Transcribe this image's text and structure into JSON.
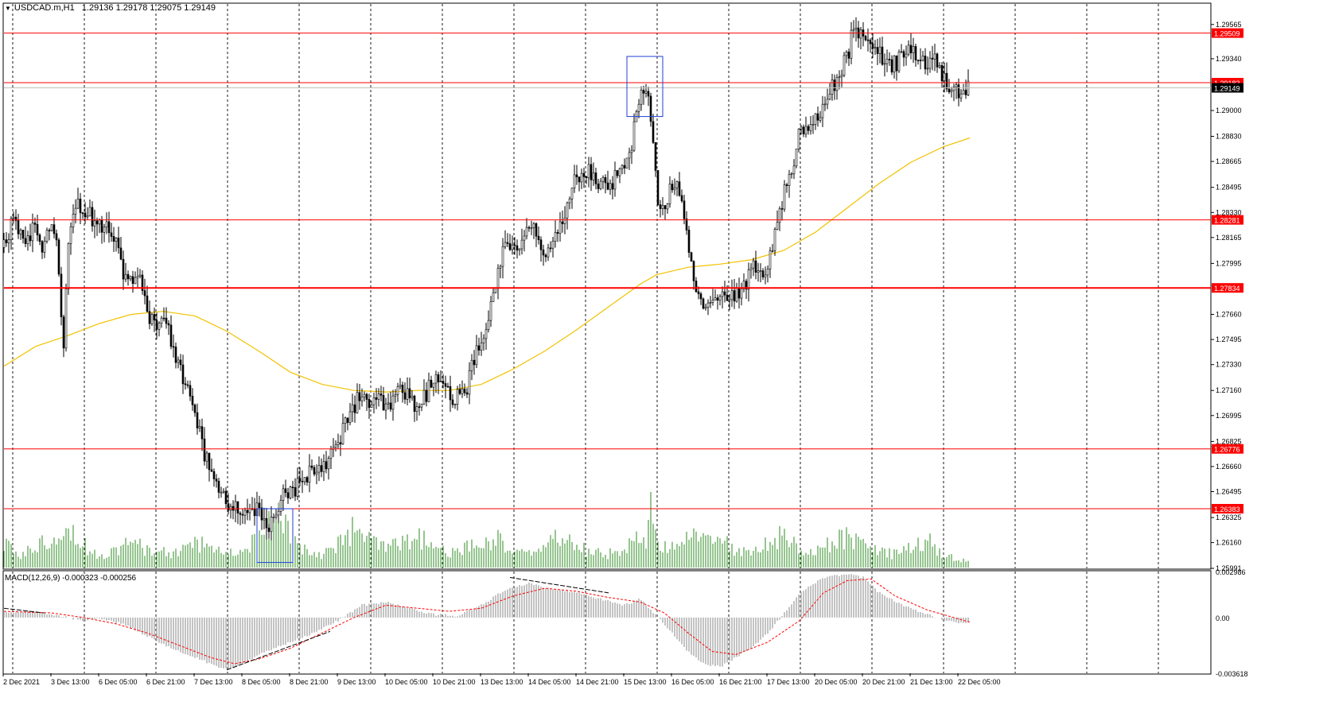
{
  "header": {
    "dropdown_icon": "triangle-down-icon",
    "symbol": "USDCAD.m,H1",
    "ohlc": "1.29136 1.29178 1.29075 1.29149"
  },
  "macd": {
    "label": "MACD(12,26,9) -0.000323 -0.000256",
    "axis_labels": [
      "0.002986",
      "0.00",
      "-0.003618"
    ]
  },
  "colors": {
    "candle": "#000000",
    "volume": "#2e8b22",
    "sma": "#f2c200",
    "level_line": "#ff0000",
    "box": "#1f3fd8",
    "macd_hist": "#b4b4b4",
    "macd_signal": "#ff0000",
    "grid": "#000000"
  },
  "chart_data": {
    "type": "candlestick",
    "instrument": "USDCAD.m",
    "timeframe": "H1",
    "price_axis": {
      "range": [
        1.25991,
        1.297
      ],
      "tick_labels": [
        "1.29565",
        "1.29340",
        "1.29000",
        "1.28830",
        "1.28665",
        "1.28495",
        "1.28330",
        "1.28165",
        "1.27995",
        "1.27660",
        "1.27495",
        "1.27330",
        "1.27160",
        "1.26995",
        "1.26825",
        "1.26660",
        "1.26495",
        "1.26325",
        "1.26160",
        "1.25991"
      ]
    },
    "time_axis_labels": [
      "2 Dec 2021",
      "3 Dec 13:00",
      "6 Dec 05:00",
      "6 Dec 21:00",
      "7 Dec 13:00",
      "8 Dec 05:00",
      "8 Dec 21:00",
      "9 Dec 13:00",
      "10 Dec 05:00",
      "10 Dec 21:00",
      "13 Dec 13:00",
      "14 Dec 05:00",
      "14 Dec 21:00",
      "15 Dec 13:00",
      "16 Dec 05:00",
      "16 Dec 21:00",
      "17 Dec 13:00",
      "20 Dec 05:00",
      "20 Dec 21:00",
      "21 Dec 13:00",
      "22 Dec 05:00"
    ],
    "horizontal_levels": [
      "1.29509",
      "1.29183",
      "1.28281",
      "1.27834",
      "1.26776",
      "1.26383"
    ],
    "current_price": "1.29149",
    "price_path": [
      [
        0,
        1.281
      ],
      [
        10,
        1.2825
      ],
      [
        20,
        1.282
      ],
      [
        30,
        1.2815
      ],
      [
        40,
        1.2825
      ],
      [
        50,
        1.2808
      ],
      [
        60,
        1.283
      ],
      [
        66,
        1.2818
      ],
      [
        72,
        1.277
      ],
      [
        75,
        1.2748
      ],
      [
        80,
        1.2815
      ],
      [
        90,
        1.284
      ],
      [
        100,
        1.2835
      ],
      [
        110,
        1.283
      ],
      [
        120,
        1.2825
      ],
      [
        130,
        1.2828
      ],
      [
        140,
        1.2815
      ],
      [
        150,
        1.2795
      ],
      [
        160,
        1.2785
      ],
      [
        170,
        1.279
      ],
      [
        178,
        1.277
      ],
      [
        190,
        1.276
      ],
      [
        200,
        1.2765
      ],
      [
        212,
        1.2745
      ],
      [
        222,
        1.273
      ],
      [
        232,
        1.2715
      ],
      [
        242,
        1.2695
      ],
      [
        252,
        1.2675
      ],
      [
        262,
        1.266
      ],
      [
        272,
        1.265
      ],
      [
        282,
        1.264
      ],
      [
        292,
        1.2638
      ],
      [
        302,
        1.2636
      ],
      [
        312,
        1.264
      ],
      [
        322,
        1.2635
      ],
      [
        332,
        1.2625
      ],
      [
        342,
        1.263
      ],
      [
        352,
        1.265
      ],
      [
        362,
        1.2648
      ],
      [
        372,
        1.2655
      ],
      [
        382,
        1.2662
      ],
      [
        392,
        1.2665
      ],
      [
        402,
        1.2668
      ],
      [
        412,
        1.2675
      ],
      [
        422,
        1.2685
      ],
      [
        432,
        1.2698
      ],
      [
        442,
        1.2708
      ],
      [
        452,
        1.2712
      ],
      [
        462,
        1.2705
      ],
      [
        472,
        1.271
      ],
      [
        482,
        1.2702
      ],
      [
        492,
        1.2712
      ],
      [
        502,
        1.2715
      ],
      [
        512,
        1.2708
      ],
      [
        522,
        1.2705
      ],
      [
        532,
        1.2715
      ],
      [
        542,
        1.2725
      ],
      [
        552,
        1.272
      ],
      [
        562,
        1.271
      ],
      [
        572,
        1.2712
      ],
      [
        582,
        1.2718
      ],
      [
        592,
        1.2738
      ],
      [
        602,
        1.275
      ],
      [
        612,
        1.2772
      ],
      [
        620,
        1.2795
      ],
      [
        628,
        1.2808
      ],
      [
        638,
        1.2815
      ],
      [
        648,
        1.2808
      ],
      [
        658,
        1.282
      ],
      [
        668,
        1.2822
      ],
      [
        678,
        1.2805
      ],
      [
        688,
        1.2812
      ],
      [
        698,
        1.282
      ],
      [
        708,
        1.284
      ],
      [
        718,
        1.2855
      ],
      [
        728,
        1.2858
      ],
      [
        738,
        1.286
      ],
      [
        748,
        1.285
      ],
      [
        758,
        1.2852
      ],
      [
        768,
        1.2855
      ],
      [
        778,
        1.2865
      ],
      [
        788,
        1.2875
      ],
      [
        796,
        1.29
      ],
      [
        806,
        1.2915
      ],
      [
        814,
        1.2895
      ],
      [
        818,
        1.286
      ],
      [
        824,
        1.283
      ],
      [
        832,
        1.284
      ],
      [
        840,
        1.2852
      ],
      [
        850,
        1.2845
      ],
      [
        858,
        1.282
      ],
      [
        864,
        1.2795
      ],
      [
        872,
        1.2775
      ],
      [
        882,
        1.2772
      ],
      [
        892,
        1.2778
      ],
      [
        902,
        1.2782
      ],
      [
        912,
        1.2775
      ],
      [
        922,
        1.278
      ],
      [
        932,
        1.2785
      ],
      [
        942,
        1.28
      ],
      [
        952,
        1.2792
      ],
      [
        962,
        1.28
      ],
      [
        970,
        1.2825
      ],
      [
        980,
        1.2845
      ],
      [
        990,
        1.286
      ],
      [
        1000,
        1.2885
      ],
      [
        1010,
        1.289
      ],
      [
        1020,
        1.2895
      ],
      [
        1030,
        1.29
      ],
      [
        1040,
        1.2915
      ],
      [
        1050,
        1.2925
      ],
      [
        1060,
        1.2935
      ],
      [
        1066,
        1.295
      ],
      [
        1072,
        1.2955
      ],
      [
        1080,
        1.2948
      ],
      [
        1090,
        1.2945
      ],
      [
        1100,
        1.294
      ],
      [
        1108,
        1.2928
      ],
      [
        1118,
        1.293
      ],
      [
        1128,
        1.2935
      ],
      [
        1136,
        1.294
      ],
      [
        1146,
        1.2938
      ],
      [
        1156,
        1.2932
      ],
      [
        1166,
        1.2935
      ],
      [
        1176,
        1.2928
      ],
      [
        1186,
        1.2918
      ],
      [
        1196,
        1.2912
      ],
      [
        1206,
        1.2914
      ],
      [
        1214,
        1.2915
      ]
    ],
    "sma_path": [
      [
        0,
        1.2732
      ],
      [
        40,
        1.2745
      ],
      [
        80,
        1.2752
      ],
      [
        120,
        1.276
      ],
      [
        160,
        1.2766
      ],
      [
        200,
        1.2768
      ],
      [
        240,
        1.2765
      ],
      [
        280,
        1.2755
      ],
      [
        320,
        1.2742
      ],
      [
        360,
        1.2728
      ],
      [
        400,
        1.272
      ],
      [
        440,
        1.2716
      ],
      [
        480,
        1.2715
      ],
      [
        520,
        1.2716
      ],
      [
        560,
        1.2716
      ],
      [
        600,
        1.272
      ],
      [
        640,
        1.273
      ],
      [
        680,
        1.2742
      ],
      [
        720,
        1.2756
      ],
      [
        760,
        1.2771
      ],
      [
        800,
        1.2786
      ],
      [
        820,
        1.2792
      ],
      [
        860,
        1.2797
      ],
      [
        900,
        1.2799
      ],
      [
        940,
        1.2802
      ],
      [
        980,
        1.2808
      ],
      [
        1020,
        1.282
      ],
      [
        1060,
        1.2836
      ],
      [
        1100,
        1.2852
      ],
      [
        1140,
        1.2866
      ],
      [
        1180,
        1.2876
      ],
      [
        1214,
        1.2882
      ]
    ],
    "volume_path": [
      [
        0,
        0.3
      ],
      [
        20,
        0.15
      ],
      [
        40,
        0.28
      ],
      [
        60,
        0.4
      ],
      [
        75,
        0.62
      ],
      [
        90,
        0.42
      ],
      [
        110,
        0.2
      ],
      [
        130,
        0.18
      ],
      [
        150,
        0.3
      ],
      [
        170,
        0.28
      ],
      [
        190,
        0.22
      ],
      [
        210,
        0.18
      ],
      [
        230,
        0.28
      ],
      [
        250,
        0.32
      ],
      [
        270,
        0.22
      ],
      [
        290,
        0.18
      ],
      [
        310,
        0.3
      ],
      [
        330,
        0.55
      ],
      [
        345,
        0.7
      ],
      [
        360,
        0.45
      ],
      [
        380,
        0.22
      ],
      [
        400,
        0.18
      ],
      [
        420,
        0.32
      ],
      [
        440,
        0.5
      ],
      [
        460,
        0.35
      ],
      [
        480,
        0.25
      ],
      [
        500,
        0.3
      ],
      [
        520,
        0.4
      ],
      [
        540,
        0.28
      ],
      [
        560,
        0.18
      ],
      [
        580,
        0.25
      ],
      [
        600,
        0.32
      ],
      [
        620,
        0.4
      ],
      [
        640,
        0.2
      ],
      [
        660,
        0.18
      ],
      [
        680,
        0.3
      ],
      [
        700,
        0.42
      ],
      [
        720,
        0.28
      ],
      [
        740,
        0.2
      ],
      [
        760,
        0.18
      ],
      [
        780,
        0.25
      ],
      [
        796,
        0.35
      ],
      [
        806,
        0.3
      ],
      [
        814,
        0.85
      ],
      [
        820,
        0.3
      ],
      [
        840,
        0.25
      ],
      [
        860,
        0.35
      ],
      [
        885,
        0.5
      ],
      [
        900,
        0.4
      ],
      [
        920,
        0.2
      ],
      [
        940,
        0.22
      ],
      [
        960,
        0.32
      ],
      [
        980,
        0.45
      ],
      [
        1000,
        0.22
      ],
      [
        1020,
        0.2
      ],
      [
        1040,
        0.35
      ],
      [
        1060,
        0.4
      ],
      [
        1080,
        0.38
      ],
      [
        1100,
        0.2
      ],
      [
        1120,
        0.18
      ],
      [
        1140,
        0.28
      ],
      [
        1160,
        0.38
      ],
      [
        1180,
        0.18
      ],
      [
        1200,
        0.1
      ],
      [
        1214,
        0.08
      ]
    ],
    "macd_path": [
      [
        0,
        0.0003
      ],
      [
        40,
        0.0004
      ],
      [
        70,
        0.0001
      ],
      [
        100,
        -0.0002
      ],
      [
        120,
        -0.0001
      ],
      [
        150,
        -0.0004
      ],
      [
        180,
        -0.0012
      ],
      [
        210,
        -0.002
      ],
      [
        240,
        -0.0026
      ],
      [
        270,
        -0.0032
      ],
      [
        285,
        -0.0034
      ],
      [
        300,
        -0.003
      ],
      [
        330,
        -0.0022
      ],
      [
        360,
        -0.0016
      ],
      [
        390,
        -0.001
      ],
      [
        420,
        -0.0002
      ],
      [
        450,
        0.0008
      ],
      [
        480,
        0.001
      ],
      [
        510,
        0.0006
      ],
      [
        540,
        0.0002
      ],
      [
        570,
        0.0001
      ],
      [
        600,
        0.0008
      ],
      [
        630,
        0.0018
      ],
      [
        660,
        0.0022
      ],
      [
        690,
        0.0018
      ],
      [
        720,
        0.0016
      ],
      [
        750,
        0.0012
      ],
      [
        780,
        0.0008
      ],
      [
        800,
        0.0012
      ],
      [
        815,
        0.0004
      ],
      [
        840,
        -0.001
      ],
      [
        860,
        -0.0022
      ],
      [
        880,
        -0.003
      ],
      [
        900,
        -0.0032
      ],
      [
        920,
        -0.0026
      ],
      [
        940,
        -0.002
      ],
      [
        960,
        -0.001
      ],
      [
        980,
        0.0002
      ],
      [
        1000,
        0.0016
      ],
      [
        1030,
        0.0026
      ],
      [
        1060,
        0.0028
      ],
      [
        1080,
        0.0026
      ],
      [
        1100,
        0.0016
      ],
      [
        1130,
        0.0008
      ],
      [
        1160,
        0.0002
      ],
      [
        1190,
        -0.0003
      ],
      [
        1214,
        -0.0003
      ]
    ],
    "macd_signal_path": [
      [
        0,
        0.0004
      ],
      [
        60,
        0.0003
      ],
      [
        100,
        0.0
      ],
      [
        140,
        -0.0004
      ],
      [
        180,
        -0.001
      ],
      [
        220,
        -0.0018
      ],
      [
        260,
        -0.0026
      ],
      [
        290,
        -0.003
      ],
      [
        320,
        -0.0027
      ],
      [
        360,
        -0.002
      ],
      [
        400,
        -0.001
      ],
      [
        440,
        0.0
      ],
      [
        480,
        0.0008
      ],
      [
        520,
        0.0006
      ],
      [
        560,
        0.0004
      ],
      [
        600,
        0.0006
      ],
      [
        640,
        0.0014
      ],
      [
        680,
        0.0019
      ],
      [
        720,
        0.0017
      ],
      [
        760,
        0.0013
      ],
      [
        800,
        0.001
      ],
      [
        830,
        0.0003
      ],
      [
        860,
        -0.001
      ],
      [
        890,
        -0.0022
      ],
      [
        920,
        -0.0024
      ],
      [
        960,
        -0.0016
      ],
      [
        1000,
        -0.0002
      ],
      [
        1030,
        0.0016
      ],
      [
        1060,
        0.0024
      ],
      [
        1090,
        0.0025
      ],
      [
        1120,
        0.0014
      ],
      [
        1160,
        0.0005
      ],
      [
        1214,
        -0.0003
      ]
    ]
  }
}
